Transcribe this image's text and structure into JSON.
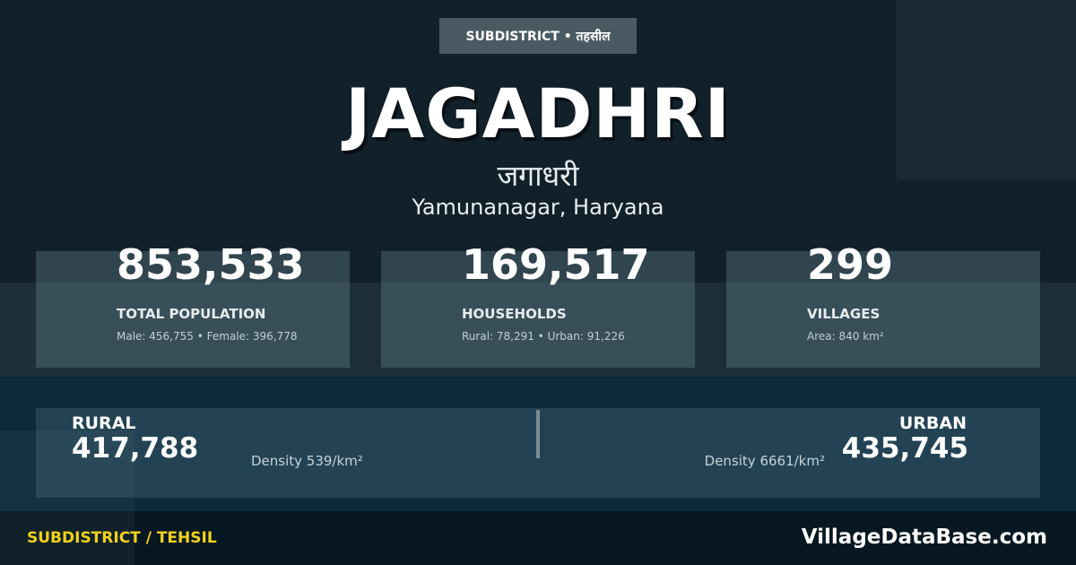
{
  "badge": "SUBDISTRICT • तहसील",
  "name": "JAGADHRI",
  "name_hindi": "जगाधरी",
  "location": "Yamunanagar, Haryana",
  "stats": [
    {
      "value": "853,533",
      "label": "TOTAL POPULATION",
      "sub": "Male: 456,755 • Female: 396,778"
    },
    {
      "value": "169,517",
      "label": "HOUSEHOLDS",
      "sub": "Rural: 78,291 • Urban: 91,226"
    },
    {
      "value": "299",
      "label": "VILLAGES",
      "sub": "Area: 840 km²"
    }
  ],
  "rural": {
    "label": "RURAL",
    "value": "417,788",
    "density": "Density 539/km²"
  },
  "urban": {
    "label": "URBAN",
    "value": "435,745",
    "density": "Density 6661/km²"
  },
  "footer": {
    "type": "SUBDISTRICT / TEHSIL",
    "site": "VillageDataBase.com"
  },
  "colors": {
    "accent": "#f3d21c",
    "background": "#12202a"
  }
}
